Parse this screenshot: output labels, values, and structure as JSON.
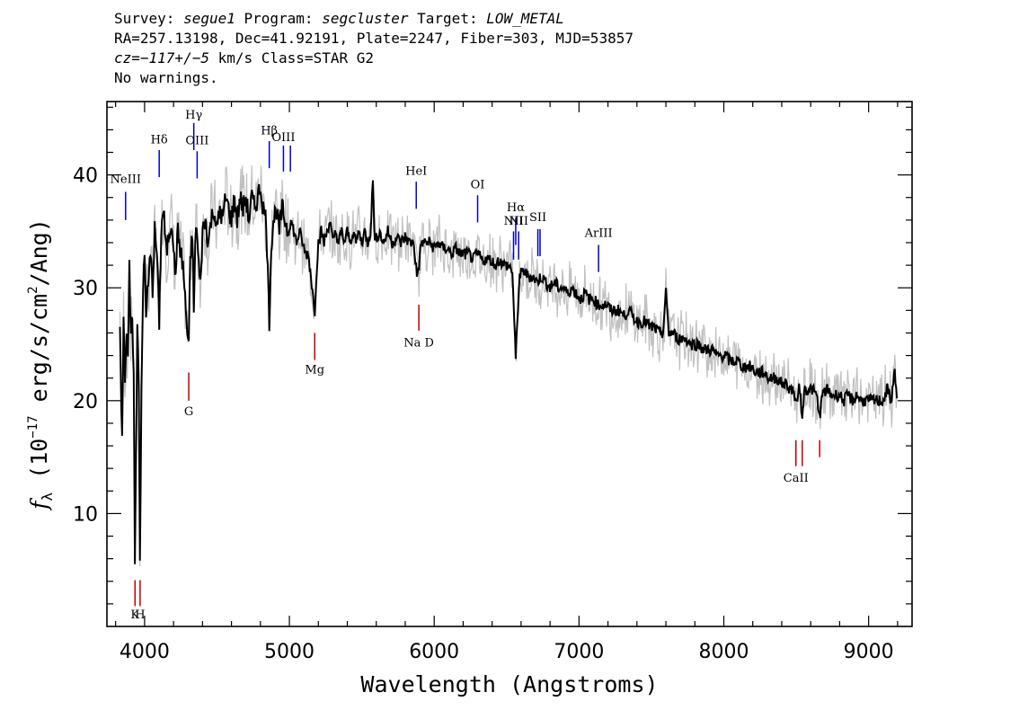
{
  "header": {
    "line1": {
      "survey_label": "Survey: ",
      "survey": "segue1",
      "program_label": " Program: ",
      "program": "segcluster",
      "target_label": " Target: ",
      "target": "LOW_METAL"
    },
    "line2": "RA=257.13198, Dec=41.92191, Plate=2247, Fiber=303, MJD=53857",
    "line3": {
      "cz": "cz=−117+/−5",
      "rest": " km/s Class=STAR G2"
    },
    "line4": "No warnings."
  },
  "chart_data": {
    "type": "line",
    "xlabel": "Wavelength (Angstroms)",
    "ylabel_parts": {
      "f": "f",
      "lambda": "λ",
      "prefix": " (10",
      "exp": "−17",
      "unit": " erg/s/cm",
      "exp2": "2",
      "suffix": "/Ang)"
    },
    "xlim": [
      3740,
      9300
    ],
    "ylim": [
      0,
      46.5
    ],
    "xticks": [
      4000,
      5000,
      6000,
      7000,
      8000,
      9000
    ],
    "yticks": [
      10,
      20,
      30,
      40
    ],
    "series": [
      {
        "role": "spectrum",
        "color": "#000000",
        "points": [
          [
            3830,
            27.5
          ],
          [
            3845,
            16
          ],
          [
            3855,
            28
          ],
          [
            3865,
            22
          ],
          [
            3875,
            26
          ],
          [
            3885,
            23
          ],
          [
            3895,
            32
          ],
          [
            3905,
            25
          ],
          [
            3915,
            28
          ],
          [
            3925,
            22
          ],
          [
            3933,
            4.9
          ],
          [
            3940,
            14
          ],
          [
            3950,
            27
          ],
          [
            3960,
            22
          ],
          [
            3968,
            5.8
          ],
          [
            3978,
            20
          ],
          [
            3990,
            30
          ],
          [
            4000,
            33
          ],
          [
            4010,
            28
          ],
          [
            4025,
            30
          ],
          [
            4040,
            33
          ],
          [
            4055,
            30
          ],
          [
            4070,
            35
          ],
          [
            4085,
            33
          ],
          [
            4101,
            27
          ],
          [
            4115,
            35
          ],
          [
            4130,
            37
          ],
          [
            4150,
            33
          ],
          [
            4170,
            35
          ],
          [
            4190,
            36
          ],
          [
            4210,
            31
          ],
          [
            4230,
            35
          ],
          [
            4250,
            33
          ],
          [
            4265,
            32
          ],
          [
            4280,
            29
          ],
          [
            4295,
            26
          ],
          [
            4305,
            25
          ],
          [
            4315,
            32
          ],
          [
            4330,
            35
          ],
          [
            4340,
            28
          ],
          [
            4355,
            36
          ],
          [
            4370,
            33
          ],
          [
            4384,
            30
          ],
          [
            4400,
            35
          ],
          [
            4420,
            36
          ],
          [
            4440,
            34
          ],
          [
            4460,
            36
          ],
          [
            4480,
            37
          ],
          [
            4500,
            35
          ],
          [
            4520,
            37
          ],
          [
            4540,
            36
          ],
          [
            4560,
            38
          ],
          [
            4580,
            37
          ],
          [
            4600,
            36
          ],
          [
            4620,
            38
          ],
          [
            4640,
            36
          ],
          [
            4660,
            38
          ],
          [
            4680,
            37
          ],
          [
            4700,
            38
          ],
          [
            4720,
            36
          ],
          [
            4740,
            38
          ],
          [
            4760,
            37
          ],
          [
            4780,
            38
          ],
          [
            4800,
            39
          ],
          [
            4820,
            37
          ],
          [
            4840,
            36
          ],
          [
            4861,
            27
          ],
          [
            4875,
            34
          ],
          [
            4890,
            36
          ],
          [
            4910,
            37
          ],
          [
            4930,
            35
          ],
          [
            4950,
            37
          ],
          [
            4970,
            36
          ],
          [
            4990,
            35
          ],
          [
            5010,
            36
          ],
          [
            5030,
            35
          ],
          [
            5050,
            34
          ],
          [
            5070,
            35
          ],
          [
            5090,
            34
          ],
          [
            5110,
            33
          ],
          [
            5130,
            33
          ],
          [
            5150,
            31
          ],
          [
            5165,
            29
          ],
          [
            5175,
            28
          ],
          [
            5185,
            31
          ],
          [
            5200,
            34
          ],
          [
            5220,
            35
          ],
          [
            5240,
            34
          ],
          [
            5260,
            35
          ],
          [
            5280,
            36
          ],
          [
            5300,
            34
          ],
          [
            5320,
            35
          ],
          [
            5340,
            34
          ],
          [
            5360,
            35
          ],
          [
            5380,
            34
          ],
          [
            5400,
            35
          ],
          [
            5420,
            34
          ],
          [
            5440,
            35
          ],
          [
            5460,
            34
          ],
          [
            5480,
            35
          ],
          [
            5500,
            34
          ],
          [
            5520,
            35
          ],
          [
            5540,
            34
          ],
          [
            5560,
            35
          ],
          [
            5577,
            39.5
          ],
          [
            5590,
            34
          ],
          [
            5620,
            35
          ],
          [
            5650,
            34
          ],
          [
            5680,
            35
          ],
          [
            5710,
            34
          ],
          [
            5740,
            34.5
          ],
          [
            5770,
            34
          ],
          [
            5800,
            34.5
          ],
          [
            5830,
            34
          ],
          [
            5860,
            34
          ],
          [
            5880,
            31
          ],
          [
            5895,
            32
          ],
          [
            5910,
            34
          ],
          [
            5940,
            34
          ],
          [
            5970,
            34
          ],
          [
            6000,
            33.5
          ],
          [
            6030,
            34
          ],
          [
            6060,
            33.5
          ],
          [
            6090,
            33.5
          ],
          [
            6120,
            33
          ],
          [
            6150,
            33.5
          ],
          [
            6180,
            33
          ],
          [
            6210,
            33
          ],
          [
            6240,
            33
          ],
          [
            6270,
            32.5
          ],
          [
            6300,
            33
          ],
          [
            6330,
            32.5
          ],
          [
            6360,
            32.5
          ],
          [
            6390,
            32.5
          ],
          [
            6420,
            32
          ],
          [
            6450,
            32.5
          ],
          [
            6480,
            32
          ],
          [
            6510,
            32
          ],
          [
            6540,
            31.5
          ],
          [
            6553,
            27
          ],
          [
            6563,
            23.5
          ],
          [
            6573,
            27
          ],
          [
            6590,
            31
          ],
          [
            6620,
            31.5
          ],
          [
            6650,
            31
          ],
          [
            6680,
            31
          ],
          [
            6710,
            30.5
          ],
          [
            6740,
            31
          ],
          [
            6770,
            30.5
          ],
          [
            6800,
            30
          ],
          [
            6830,
            30.5
          ],
          [
            6860,
            30
          ],
          [
            6890,
            30
          ],
          [
            6920,
            29.5
          ],
          [
            6950,
            30
          ],
          [
            6980,
            29.5
          ],
          [
            7010,
            29
          ],
          [
            7040,
            29.5
          ],
          [
            7070,
            29
          ],
          [
            7100,
            29
          ],
          [
            7130,
            28.5
          ],
          [
            7160,
            28.5
          ],
          [
            7190,
            28.5
          ],
          [
            7220,
            28
          ],
          [
            7250,
            28
          ],
          [
            7280,
            28
          ],
          [
            7310,
            27.5
          ],
          [
            7340,
            28
          ],
          [
            7370,
            27.5
          ],
          [
            7400,
            27
          ],
          [
            7430,
            27
          ],
          [
            7460,
            27
          ],
          [
            7490,
            26.5
          ],
          [
            7520,
            26.5
          ],
          [
            7550,
            26
          ],
          [
            7580,
            26
          ],
          [
            7600,
            29.5
          ],
          [
            7620,
            26
          ],
          [
            7650,
            26
          ],
          [
            7680,
            25.5
          ],
          [
            7710,
            25.5
          ],
          [
            7740,
            25.5
          ],
          [
            7770,
            25
          ],
          [
            7800,
            25
          ],
          [
            7830,
            25
          ],
          [
            7860,
            24.5
          ],
          [
            7890,
            24.5
          ],
          [
            7920,
            24.5
          ],
          [
            7950,
            24
          ],
          [
            7980,
            24
          ],
          [
            8010,
            24
          ],
          [
            8040,
            23.5
          ],
          [
            8070,
            23.5
          ],
          [
            8100,
            23.5
          ],
          [
            8130,
            23
          ],
          [
            8160,
            23
          ],
          [
            8190,
            23
          ],
          [
            8220,
            22.5
          ],
          [
            8250,
            22.5
          ],
          [
            8280,
            22.5
          ],
          [
            8310,
            22
          ],
          [
            8340,
            22
          ],
          [
            8370,
            22
          ],
          [
            8400,
            21.5
          ],
          [
            8430,
            21.5
          ],
          [
            8460,
            21
          ],
          [
            8480,
            21
          ],
          [
            8498,
            19.5
          ],
          [
            8515,
            21
          ],
          [
            8530,
            21
          ],
          [
            8542,
            18
          ],
          [
            8555,
            21
          ],
          [
            8580,
            21
          ],
          [
            8610,
            21
          ],
          [
            8640,
            20.5
          ],
          [
            8662,
            18.5
          ],
          [
            8680,
            20.5
          ],
          [
            8710,
            21
          ],
          [
            8740,
            20.5
          ],
          [
            8770,
            20.5
          ],
          [
            8800,
            20.5
          ],
          [
            8830,
            20
          ],
          [
            8860,
            20.5
          ],
          [
            8890,
            20
          ],
          [
            8920,
            20.5
          ],
          [
            8950,
            20
          ],
          [
            8980,
            20
          ],
          [
            9010,
            20
          ],
          [
            9040,
            20
          ],
          [
            9070,
            20
          ],
          [
            9100,
            20
          ],
          [
            9130,
            21
          ],
          [
            9160,
            20
          ],
          [
            9180,
            23
          ],
          [
            9195,
            20
          ]
        ]
      }
    ],
    "absorption_lines": [
      {
        "label": "K",
        "wavelength": 3934,
        "y_top": 4.1,
        "y_bottom": 1.8,
        "label_y": 0.7,
        "color": "#c00000"
      },
      {
        "label": "H",
        "wavelength": 3969,
        "y_top": 4.1,
        "y_bottom": 1.8,
        "label_y": 0.7,
        "color": "#c00000"
      },
      {
        "label": "G",
        "wavelength": 4305,
        "y_top": 22.5,
        "y_bottom": 20.0,
        "label_y": 18.7,
        "color": "#c00000"
      },
      {
        "label": "Mg",
        "wavelength": 5175,
        "y_top": 26.0,
        "y_bottom": 23.6,
        "label_y": 22.4,
        "color": "#c00000"
      },
      {
        "label": "Na D",
        "wavelength": 5894,
        "y_top": 28.5,
        "y_bottom": 26.2,
        "label_y": 24.8,
        "color": "#c00000"
      },
      {
        "label": "CaII",
        "wavelength": 8498,
        "y_top": 16.5,
        "y_bottom": 14.2,
        "label_y": 12.8,
        "color": "#c00000"
      },
      {
        "label": "",
        "wavelength": 8542,
        "y_top": 16.5,
        "y_bottom": 14.2,
        "label_y": 12.8,
        "color": "#c00000"
      },
      {
        "label": "",
        "wavelength": 8662,
        "y_top": 16.5,
        "y_bottom": 15.0,
        "label_y": 12.8,
        "color": "#c00000"
      }
    ],
    "emission_lines": [
      {
        "label": "NeIII",
        "wavelength": 3869,
        "y_bottom": 36.0,
        "y_top": 38.5,
        "label_y": 39.3,
        "color": "#0000cc"
      },
      {
        "label": "Hδ",
        "wavelength": 4101,
        "y_bottom": 39.8,
        "y_top": 42.2,
        "label_y": 42.8,
        "color": "#0000cc"
      },
      {
        "label": "Hγ",
        "wavelength": 4340,
        "y_bottom": 42.2,
        "y_top": 44.6,
        "label_y": 45.0,
        "color": "#0000cc"
      },
      {
        "label": "OIII",
        "wavelength": 4363,
        "y_bottom": 39.7,
        "y_top": 42.1,
        "label_y": 42.7,
        "color": "#0000cc"
      },
      {
        "label": "Hβ",
        "wavelength": 4861,
        "y_bottom": 40.6,
        "y_top": 43.0,
        "label_y": 43.6,
        "color": "#0000cc"
      },
      {
        "label": "OIII",
        "wavelength": 4959,
        "y_bottom": 40.3,
        "y_top": 42.6,
        "label_y": 43.0,
        "color": "#0000cc"
      },
      {
        "label": "",
        "wavelength": 5007,
        "y_bottom": 40.3,
        "y_top": 42.6,
        "label_y": 43.0,
        "color": "#0000cc"
      },
      {
        "label": "HeI",
        "wavelength": 5876,
        "y_bottom": 37.0,
        "y_top": 39.4,
        "label_y": 40.0,
        "color": "#0000cc"
      },
      {
        "label": "OI",
        "wavelength": 6300,
        "y_bottom": 35.8,
        "y_top": 38.2,
        "label_y": 38.8,
        "color": "#0000cc"
      },
      {
        "label": "NII",
        "wavelength": 6548,
        "y_bottom": 32.5,
        "y_top": 35.0,
        "label_y": 35.6,
        "color": "#0000cc"
      },
      {
        "label": "Hα",
        "wavelength": 6563,
        "y_bottom": 33.8,
        "y_top": 36.2,
        "label_y": 36.8,
        "color": "#0000cc"
      },
      {
        "label": "NII",
        "wavelength": 6583,
        "y_bottom": 32.5,
        "y_top": 35.0,
        "label_y": 35.6,
        "color": "#0000cc"
      },
      {
        "label": "SII",
        "wavelength": 6716,
        "y_bottom": 32.8,
        "y_top": 35.2,
        "label_y": 35.9,
        "color": "#0000cc"
      },
      {
        "label": "",
        "wavelength": 6731,
        "y_bottom": 32.8,
        "y_top": 35.2,
        "label_y": 35.9,
        "color": "#0000cc"
      },
      {
        "label": "ArIII",
        "wavelength": 7135,
        "y_bottom": 31.4,
        "y_top": 33.8,
        "label_y": 34.5,
        "color": "#0000cc"
      }
    ],
    "error_band_color": "#c0c0c0"
  }
}
